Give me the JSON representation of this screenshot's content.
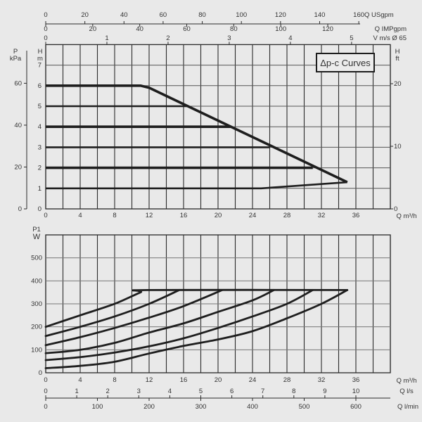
{
  "colors": {
    "background": "#e9e9e9",
    "curve": "#1e1e1e",
    "grid": "#2a2a2a",
    "text": "#333333"
  },
  "top_axes": {
    "usgpm": {
      "label": "Q USgpm",
      "ticks": [
        0,
        20,
        40,
        60,
        80,
        100,
        120,
        140,
        160
      ]
    },
    "impgpm": {
      "label": "Q IMPgpm",
      "ticks": [
        0,
        20,
        40,
        60,
        80,
        100,
        120
      ]
    },
    "velocity": {
      "label": "V m/s Ø 65",
      "ticks": [
        0,
        1,
        2,
        3,
        4,
        5
      ]
    }
  },
  "bottom_axes": {
    "ls": {
      "label": "Q l/s",
      "ticks": [
        0,
        1,
        2,
        3,
        4,
        5,
        6,
        7,
        8,
        9,
        10
      ]
    },
    "lmin": {
      "label": "Q l/min",
      "ticks": [
        0,
        100,
        200,
        300,
        400,
        500,
        600
      ]
    }
  },
  "chart_data": [
    {
      "type": "line",
      "title": "Δp-c Curves",
      "xlabel": "Q m³/h",
      "ylabel": "H m",
      "ylabel_left_secondary": "P kPa",
      "ylabel_right": "H ft",
      "xlim": [
        0,
        40
      ],
      "ylim": [
        0,
        8
      ],
      "x_ticks": [
        0,
        4,
        8,
        12,
        16,
        20,
        24,
        28,
        32,
        36
      ],
      "y_ticks": [
        0,
        1,
        2,
        3,
        4,
        5,
        6,
        7
      ],
      "kpa_ticks": [
        0,
        20,
        40,
        60
      ],
      "ft_ticks": [
        0,
        10,
        20
      ],
      "grid": true,
      "series": [
        {
          "points": [
            [
              0,
              6
            ],
            [
              11,
              6
            ],
            [
              12,
              5.9
            ],
            [
              35,
              1.3
            ]
          ],
          "weight": "heavy"
        },
        {
          "points": [
            [
              0,
              5
            ],
            [
              16.5,
              5
            ]
          ],
          "weight": "normal"
        },
        {
          "points": [
            [
              0,
              4
            ],
            [
              21.5,
              4
            ]
          ],
          "weight": "heavy"
        },
        {
          "points": [
            [
              0,
              3
            ],
            [
              26,
              3
            ]
          ],
          "weight": "normal"
        },
        {
          "points": [
            [
              0,
              2
            ],
            [
              31,
              2
            ]
          ],
          "weight": "heavy"
        },
        {
          "points": [
            [
              0,
              1
            ],
            [
              25,
              1
            ],
            [
              35,
              1.3
            ]
          ],
          "weight": "normal"
        }
      ]
    },
    {
      "type": "line",
      "xlabel": "Q m³/h",
      "ylabel": "P1 W",
      "xlim": [
        0,
        40
      ],
      "ylim": [
        0,
        600
      ],
      "x_ticks": [
        0,
        4,
        8,
        12,
        16,
        20,
        24,
        28,
        32,
        36
      ],
      "y_ticks": [
        0,
        100,
        200,
        300,
        400,
        500
      ],
      "grid": true,
      "series": [
        {
          "points": [
            [
              0,
              200
            ],
            [
              4,
              250
            ],
            [
              8,
              300
            ],
            [
              11,
              350
            ],
            [
              12,
              360
            ],
            [
              35,
              360
            ]
          ]
        },
        {
          "points": [
            [
              0,
              160
            ],
            [
              4,
              200
            ],
            [
              8,
              245
            ],
            [
              12,
              300
            ],
            [
              15.5,
              360
            ]
          ]
        },
        {
          "points": [
            [
              0,
              120
            ],
            [
              4,
              155
            ],
            [
              8,
              195
            ],
            [
              12,
              240
            ],
            [
              16,
              290
            ],
            [
              20.5,
              360
            ]
          ]
        },
        {
          "points": [
            [
              0,
              85
            ],
            [
              4,
              100
            ],
            [
              8,
              130
            ],
            [
              12,
              175
            ],
            [
              16,
              215
            ],
            [
              20,
              265
            ],
            [
              24,
              315
            ],
            [
              26.5,
              360
            ]
          ]
        },
        {
          "points": [
            [
              0,
              55
            ],
            [
              4,
              68
            ],
            [
              8,
              88
            ],
            [
              12,
              115
            ],
            [
              16,
              150
            ],
            [
              20,
              195
            ],
            [
              24,
              245
            ],
            [
              28,
              300
            ],
            [
              31,
              360
            ]
          ]
        },
        {
          "points": [
            [
              0,
              20
            ],
            [
              4,
              30
            ],
            [
              8,
              48
            ],
            [
              12,
              84
            ],
            [
              16,
              117
            ],
            [
              20,
              145
            ],
            [
              24,
              181
            ],
            [
              28,
              237
            ],
            [
              32,
              300
            ],
            [
              35,
              360
            ]
          ]
        }
      ]
    }
  ]
}
